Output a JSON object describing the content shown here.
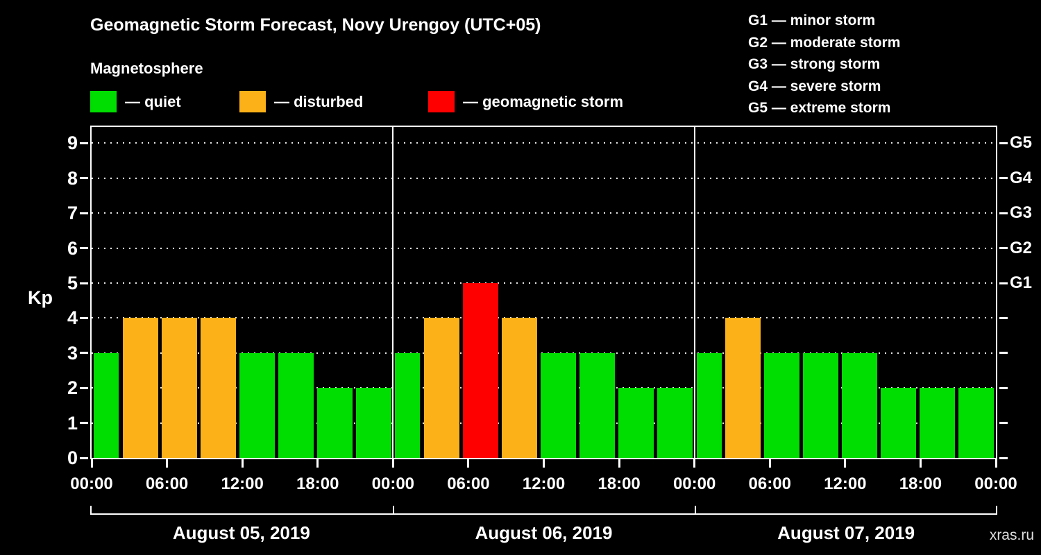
{
  "header": {
    "title": "Geomagnetic Storm Forecast, Novy Urengoy (UTC+05)",
    "subtitle": "Magnetosphere"
  },
  "g_scale_legend": {
    "items": [
      "G1 — minor storm",
      "G2 — moderate storm",
      "G3 — strong storm",
      "G4 — severe storm",
      "G5 — extreme storm"
    ]
  },
  "kp_legend": {
    "items": [
      {
        "id": "quiet",
        "label": "— quiet",
        "color": "#00dd00"
      },
      {
        "id": "disturbed",
        "label": "— disturbed",
        "color": "#fbb117"
      },
      {
        "id": "storm",
        "label": "— geomagnetic storm",
        "color": "#ff0000"
      }
    ]
  },
  "chart_data": {
    "type": "bar",
    "title": "Geomagnetic Storm Forecast, Novy Urengoy (UTC+05)",
    "ylabel": "Kp",
    "xlabel": "",
    "ylim": [
      0,
      9.5
    ],
    "y_ticks": [
      0,
      1,
      2,
      3,
      4,
      5,
      6,
      7,
      8,
      9
    ],
    "grid": "dotted horizontal line at each Kp level",
    "bar_interval_hours": 3,
    "right_axis": [
      {
        "label": "G1",
        "kp": 5
      },
      {
        "label": "G2",
        "kp": 6
      },
      {
        "label": "G3",
        "kp": 7
      },
      {
        "label": "G4",
        "kp": 8
      },
      {
        "label": "G5",
        "kp": 9
      }
    ],
    "x_tick_labels": [
      "00:00",
      "06:00",
      "12:00",
      "18:00",
      "00:00",
      "06:00",
      "12:00",
      "18:00",
      "00:00",
      "06:00",
      "12:00",
      "18:00",
      "00:00"
    ],
    "status_colors": {
      "quiet": "#00dd00",
      "disturbed": "#fbb117",
      "storm": "#ff0000"
    },
    "days": [
      {
        "label": "August 05, 2019",
        "bars": [
          {
            "time": "00:00",
            "kp": 3,
            "status": "quiet"
          },
          {
            "time": "03:00",
            "kp": 4,
            "status": "disturbed"
          },
          {
            "time": "06:00",
            "kp": 4,
            "status": "disturbed"
          },
          {
            "time": "09:00",
            "kp": 4,
            "status": "disturbed"
          },
          {
            "time": "12:00",
            "kp": 3,
            "status": "quiet"
          },
          {
            "time": "15:00",
            "kp": 3,
            "status": "quiet"
          },
          {
            "time": "18:00",
            "kp": 2,
            "status": "quiet"
          },
          {
            "time": "21:00",
            "kp": 2,
            "status": "quiet"
          }
        ]
      },
      {
        "label": "August 06, 2019",
        "bars": [
          {
            "time": "00:00",
            "kp": 3,
            "status": "quiet"
          },
          {
            "time": "03:00",
            "kp": 4,
            "status": "disturbed"
          },
          {
            "time": "06:00",
            "kp": 5,
            "status": "storm"
          },
          {
            "time": "09:00",
            "kp": 4,
            "status": "disturbed"
          },
          {
            "time": "12:00",
            "kp": 3,
            "status": "quiet"
          },
          {
            "time": "15:00",
            "kp": 3,
            "status": "quiet"
          },
          {
            "time": "18:00",
            "kp": 2,
            "status": "quiet"
          },
          {
            "time": "21:00",
            "kp": 2,
            "status": "quiet"
          }
        ]
      },
      {
        "label": "August 07, 2019",
        "bars": [
          {
            "time": "00:00",
            "kp": 3,
            "status": "quiet"
          },
          {
            "time": "03:00",
            "kp": 4,
            "status": "disturbed"
          },
          {
            "time": "06:00",
            "kp": 3,
            "status": "quiet"
          },
          {
            "time": "09:00",
            "kp": 3,
            "status": "quiet"
          },
          {
            "time": "12:00",
            "kp": 3,
            "status": "quiet"
          },
          {
            "time": "15:00",
            "kp": 2,
            "status": "quiet"
          },
          {
            "time": "18:00",
            "kp": 2,
            "status": "quiet"
          },
          {
            "time": "21:00",
            "kp": 2,
            "status": "quiet"
          }
        ]
      }
    ]
  },
  "footer": {
    "watermark": "xras.ru"
  }
}
